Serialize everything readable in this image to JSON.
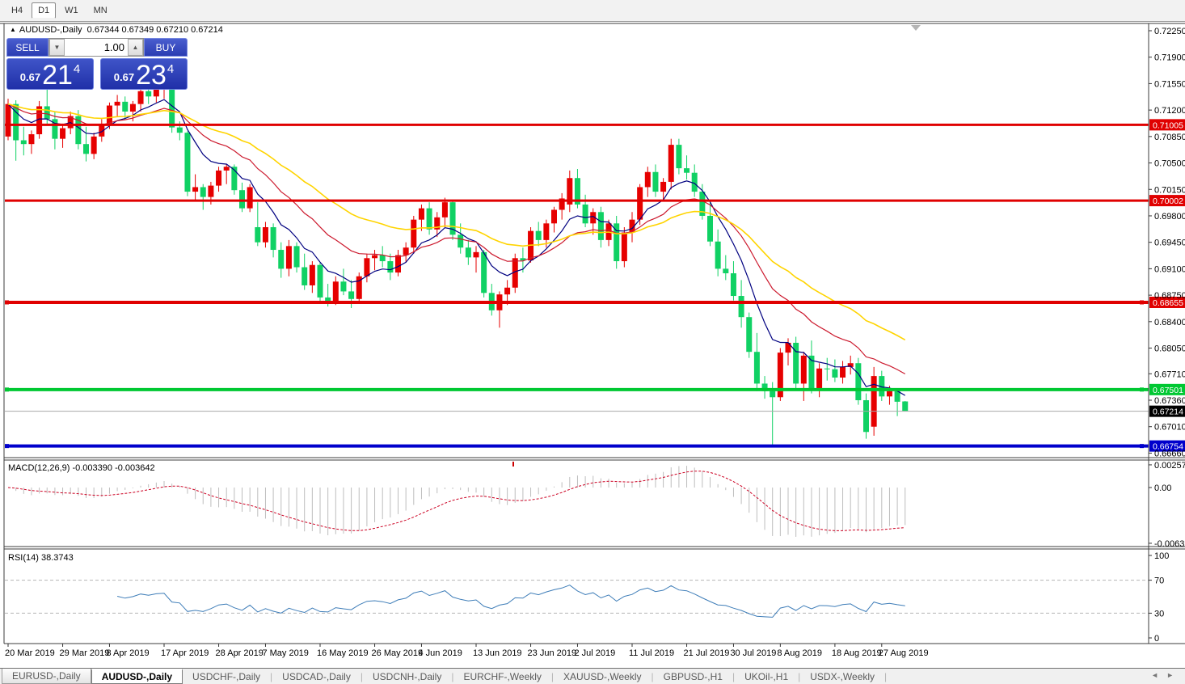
{
  "toolbar": {
    "periods": [
      {
        "label": "H4",
        "active": false
      },
      {
        "label": "D1",
        "active": true
      },
      {
        "label": "W1",
        "active": false
      },
      {
        "label": "MN",
        "active": false
      }
    ]
  },
  "chart_header": {
    "symbol_line": "AUDUSD-,Daily",
    "ohlc_line": "0.67344 0.67349 0.67210 0.67214",
    "collapse_icon": "triangle-up"
  },
  "trade_panel": {
    "sell_label": "SELL",
    "buy_label": "BUY",
    "volume": "1.00",
    "sell_quote": {
      "small": "0.67",
      "big": "21",
      "sup": "4"
    },
    "buy_quote": {
      "small": "0.67",
      "big": "23",
      "sup": "4"
    }
  },
  "macd_label": "MACD(12,26,9) -0.003390 -0.003642",
  "rsi_label": "RSI(14) 38.3743",
  "chart_data": {
    "type": "candlestick",
    "symbol": "AUDUSD-",
    "timeframe": "Daily",
    "colors": {
      "up": "#e60000",
      "down": "#10d164",
      "ma_fast": "#000080",
      "ma_mid": "#cc1a2e",
      "ma_slow": "#ffd400",
      "macd_hist": "#bdbdbd",
      "macd_signal": "#cc0022",
      "rsi": "#3e7db8"
    },
    "y_axis": {
      "ticks": [
        "0.72250",
        "0.71900",
        "0.71550",
        "0.71200",
        "0.70850",
        "0.70500",
        "0.70150",
        "0.69800",
        "0.69450",
        "0.69100",
        "0.68750",
        "0.68400",
        "0.68050",
        "0.67710",
        "0.67360",
        "0.67010",
        "0.66660"
      ],
      "current_price": "0.67214"
    },
    "x_axis": {
      "labels": [
        {
          "bar": 0,
          "label": "20 Mar 2019"
        },
        {
          "bar": 7,
          "label": "29 Mar 2019"
        },
        {
          "bar": 13,
          "label": "8 Apr 2019"
        },
        {
          "bar": 20,
          "label": "17 Apr 2019"
        },
        {
          "bar": 27,
          "label": "28 Apr 2019"
        },
        {
          "bar": 33,
          "label": "7 May 2019"
        },
        {
          "bar": 40,
          "label": "16 May 2019"
        },
        {
          "bar": 47,
          "label": "26 May 2019"
        },
        {
          "bar": 53,
          "label": "4 Jun 2019"
        },
        {
          "bar": 60,
          "label": "13 Jun 2019"
        },
        {
          "bar": 67,
          "label": "23 Jun 2019"
        },
        {
          "bar": 73,
          "label": "2 Jul 2019"
        },
        {
          "bar": 80,
          "label": "11 Jul 2019"
        },
        {
          "bar": 87,
          "label": "21 Jul 2019"
        },
        {
          "bar": 93,
          "label": "30 Jul 2019"
        },
        {
          "bar": 99,
          "label": "8 Aug 2019"
        },
        {
          "bar": 106,
          "label": "18 Aug 2019"
        },
        {
          "bar": 112,
          "label": "27 Aug 2019"
        }
      ]
    },
    "levels": [
      {
        "price": 0.71005,
        "label": "0.71005",
        "color": "#e00000",
        "width": 3,
        "selected": false
      },
      {
        "price": 0.70002,
        "label": "0.70002",
        "color": "#e00000",
        "width": 3,
        "selected": false
      },
      {
        "price": 0.68655,
        "label": "0.68655",
        "color": "#e00000",
        "width": 4,
        "selected": true
      },
      {
        "price": 0.67501,
        "label": "0.67501",
        "color": "#00c832",
        "width": 4,
        "selected": true
      },
      {
        "price": 0.66754,
        "label": "0.66754",
        "color": "#0000cc",
        "width": 4,
        "selected": true
      }
    ],
    "bid": {
      "price": 0.67214,
      "label": "0.67214"
    },
    "moving_averages": [
      {
        "period": 8,
        "method": "ema",
        "color": "#000080",
        "width": 1.2
      },
      {
        "period": 18,
        "method": "ema",
        "color": "#cc1a2e",
        "width": 1.2
      },
      {
        "period": 34,
        "method": "ema",
        "color": "#ffd400",
        "width": 1.6
      }
    ],
    "indicators": [
      {
        "name": "MACD",
        "params": "12,26,9",
        "values": [
          "-0.003390",
          "-0.003642"
        ],
        "scale": [
          "0.002574",
          "0.00",
          "-0.006326"
        ]
      },
      {
        "name": "RSI",
        "params": "14",
        "values": [
          "38.3743"
        ],
        "scale": [
          "100",
          "70",
          "30",
          "0"
        ],
        "level_lines": [
          70,
          30
        ]
      }
    ],
    "candles": [
      [
        0.7085,
        0.7135,
        0.708,
        0.7128
      ],
      [
        0.7128,
        0.7133,
        0.7053,
        0.708
      ],
      [
        0.708,
        0.7098,
        0.706,
        0.7075
      ],
      [
        0.7075,
        0.7093,
        0.7062,
        0.7088
      ],
      [
        0.7088,
        0.7132,
        0.7082,
        0.7125
      ],
      [
        0.7125,
        0.7147,
        0.71,
        0.7108
      ],
      [
        0.7108,
        0.7118,
        0.7068,
        0.7082
      ],
      [
        0.7082,
        0.7102,
        0.707,
        0.7096
      ],
      [
        0.7096,
        0.7118,
        0.7088,
        0.7112
      ],
      [
        0.7112,
        0.712,
        0.7068,
        0.7075
      ],
      [
        0.7075,
        0.7098,
        0.7052,
        0.7062
      ],
      [
        0.7062,
        0.709,
        0.7055,
        0.7085
      ],
      [
        0.7085,
        0.7108,
        0.7078,
        0.7102
      ],
      [
        0.7102,
        0.713,
        0.7095,
        0.7126
      ],
      [
        0.7126,
        0.714,
        0.7112,
        0.7131
      ],
      [
        0.7131,
        0.7138,
        0.7108,
        0.7118
      ],
      [
        0.7118,
        0.7132,
        0.7105,
        0.7128
      ],
      [
        0.7128,
        0.7148,
        0.7118,
        0.7145
      ],
      [
        0.7145,
        0.715,
        0.7128,
        0.7138
      ],
      [
        0.7138,
        0.7152,
        0.713,
        0.7147
      ],
      [
        0.7147,
        0.7155,
        0.7135,
        0.715
      ],
      [
        0.715,
        0.7154,
        0.709,
        0.7097
      ],
      [
        0.7097,
        0.7105,
        0.708,
        0.709
      ],
      [
        0.709,
        0.7092,
        0.7006,
        0.7012
      ],
      [
        0.7012,
        0.7035,
        0.7,
        0.7018
      ],
      [
        0.7018,
        0.7022,
        0.6988,
        0.7005
      ],
      [
        0.7005,
        0.7025,
        0.6995,
        0.702
      ],
      [
        0.702,
        0.7045,
        0.7012,
        0.704
      ],
      [
        0.704,
        0.7048,
        0.7022,
        0.7045
      ],
      [
        0.7045,
        0.7048,
        0.7008,
        0.7014
      ],
      [
        0.7014,
        0.7024,
        0.6985,
        0.699
      ],
      [
        0.699,
        0.7022,
        0.6985,
        0.7018
      ],
      [
        0.6965,
        0.6998,
        0.694,
        0.6945
      ],
      [
        0.6945,
        0.6972,
        0.6938,
        0.6965
      ],
      [
        0.6965,
        0.697,
        0.6925,
        0.6935
      ],
      [
        0.6935,
        0.6945,
        0.6898,
        0.691
      ],
      [
        0.691,
        0.6948,
        0.69,
        0.694
      ],
      [
        0.694,
        0.6945,
        0.6905,
        0.6912
      ],
      [
        0.6912,
        0.693,
        0.6882,
        0.6888
      ],
      [
        0.6888,
        0.692,
        0.6878,
        0.6915
      ],
      [
        0.6915,
        0.6918,
        0.6865,
        0.6872
      ],
      [
        0.6872,
        0.689,
        0.686,
        0.6866
      ],
      [
        0.6866,
        0.69,
        0.6862,
        0.6893
      ],
      [
        0.6893,
        0.691,
        0.6875,
        0.688
      ],
      [
        0.688,
        0.6895,
        0.6858,
        0.687
      ],
      [
        0.687,
        0.6905,
        0.6865,
        0.69
      ],
      [
        0.69,
        0.693,
        0.6892,
        0.6924
      ],
      [
        0.6924,
        0.6935,
        0.6908,
        0.6928
      ],
      [
        0.6928,
        0.694,
        0.6912,
        0.692
      ],
      [
        0.692,
        0.693,
        0.6895,
        0.6905
      ],
      [
        0.6905,
        0.6935,
        0.69,
        0.6928
      ],
      [
        0.6928,
        0.6945,
        0.6918,
        0.6938
      ],
      [
        0.6938,
        0.698,
        0.693,
        0.6975
      ],
      [
        0.6975,
        0.6995,
        0.696,
        0.699
      ],
      [
        0.699,
        0.6998,
        0.6955,
        0.6962
      ],
      [
        0.6962,
        0.6985,
        0.6952,
        0.6978
      ],
      [
        0.6978,
        0.7004,
        0.6965,
        0.6998
      ],
      [
        0.6998,
        0.7,
        0.6948,
        0.6955
      ],
      [
        0.6955,
        0.697,
        0.693,
        0.6938
      ],
      [
        0.6938,
        0.6948,
        0.6915,
        0.6925
      ],
      [
        0.6925,
        0.694,
        0.6905,
        0.6932
      ],
      [
        0.6932,
        0.6935,
        0.6872,
        0.6878
      ],
      [
        0.6878,
        0.689,
        0.6848,
        0.6855
      ],
      [
        0.6855,
        0.688,
        0.6832,
        0.6876
      ],
      [
        0.6876,
        0.6895,
        0.6862,
        0.6885
      ],
      [
        0.6885,
        0.693,
        0.6878,
        0.6924
      ],
      [
        0.6924,
        0.6938,
        0.6905,
        0.6921
      ],
      [
        0.6921,
        0.6965,
        0.6918,
        0.696
      ],
      [
        0.696,
        0.6972,
        0.694,
        0.6948
      ],
      [
        0.6948,
        0.6975,
        0.6938,
        0.697
      ],
      [
        0.697,
        0.6992,
        0.6958,
        0.6988
      ],
      [
        0.6988,
        0.701,
        0.6975,
        0.7003
      ],
      [
        0.6995,
        0.704,
        0.6985,
        0.703
      ],
      [
        0.703,
        0.7042,
        0.699,
        0.6995
      ],
      [
        0.6995,
        0.7008,
        0.6965,
        0.697
      ],
      [
        0.697,
        0.699,
        0.6955,
        0.6985
      ],
      [
        0.6985,
        0.6992,
        0.6938,
        0.6948
      ],
      [
        0.6948,
        0.6975,
        0.694,
        0.697
      ],
      [
        0.697,
        0.698,
        0.691,
        0.692
      ],
      [
        0.692,
        0.6965,
        0.6912,
        0.6958
      ],
      [
        0.6958,
        0.6985,
        0.6945,
        0.6975
      ],
      [
        0.6975,
        0.7022,
        0.6968,
        0.7018
      ],
      [
        0.7018,
        0.7045,
        0.7005,
        0.7038
      ],
      [
        0.7038,
        0.7048,
        0.7005,
        0.7012
      ],
      [
        0.7012,
        0.703,
        0.7,
        0.7025
      ],
      [
        0.7025,
        0.7082,
        0.7015,
        0.7074
      ],
      [
        0.7074,
        0.7082,
        0.7035,
        0.7043
      ],
      [
        0.7043,
        0.706,
        0.7028,
        0.7037
      ],
      [
        0.7037,
        0.7048,
        0.7005,
        0.7012
      ],
      [
        0.7012,
        0.7022,
        0.6975,
        0.698
      ],
      [
        0.698,
        0.6998,
        0.694,
        0.6946
      ],
      [
        0.6946,
        0.6962,
        0.69,
        0.691
      ],
      [
        0.691,
        0.6928,
        0.6895,
        0.6904
      ],
      [
        0.6904,
        0.692,
        0.6868,
        0.6874
      ],
      [
        0.6874,
        0.6895,
        0.6832,
        0.6846
      ],
      [
        0.6846,
        0.6852,
        0.6792,
        0.68
      ],
      [
        0.68,
        0.6825,
        0.6748,
        0.6758
      ],
      [
        0.6758,
        0.6768,
        0.6738,
        0.6748
      ],
      [
        0.6748,
        0.676,
        0.6677,
        0.674
      ],
      [
        0.674,
        0.6805,
        0.6735,
        0.6799
      ],
      [
        0.6799,
        0.6818,
        0.6782,
        0.6812
      ],
      [
        0.6812,
        0.682,
        0.675,
        0.6758
      ],
      [
        0.6758,
        0.68,
        0.6735,
        0.6795
      ],
      [
        0.6795,
        0.6815,
        0.6745,
        0.6752
      ],
      [
        0.6752,
        0.6785,
        0.674,
        0.6778
      ],
      [
        0.6778,
        0.6792,
        0.6762,
        0.6777
      ],
      [
        0.6777,
        0.679,
        0.676,
        0.6766
      ],
      [
        0.6766,
        0.6788,
        0.6758,
        0.678
      ],
      [
        0.678,
        0.6795,
        0.677,
        0.6785
      ],
      [
        0.6785,
        0.6792,
        0.673,
        0.6736
      ],
      [
        0.6736,
        0.6745,
        0.6685,
        0.6694
      ],
      [
        0.6701,
        0.678,
        0.6689,
        0.6768
      ],
      [
        0.6768,
        0.6775,
        0.6735,
        0.6741
      ],
      [
        0.6741,
        0.6755,
        0.673,
        0.6748
      ],
      [
        0.6748,
        0.6752,
        0.6715,
        0.6734
      ],
      [
        0.67344,
        0.67349,
        0.6721,
        0.67214
      ]
    ]
  },
  "bottom_tabs": {
    "tabs": [
      {
        "label": "EURUSD-,Daily",
        "active": false,
        "style": "button"
      },
      {
        "label": "AUDUSD-,Daily",
        "active": true,
        "style": "active"
      },
      {
        "label": "USDCHF-,Daily",
        "active": false,
        "style": "flat"
      },
      {
        "label": "USDCAD-,Daily",
        "active": false,
        "style": "flat"
      },
      {
        "label": "USDCNH-,Daily",
        "active": false,
        "style": "flat"
      },
      {
        "label": "EURCHF-,Weekly",
        "active": false,
        "style": "flat"
      },
      {
        "label": "XAUUSD-,Weekly",
        "active": false,
        "style": "flat"
      },
      {
        "label": "GBPUSD-,H1",
        "active": false,
        "style": "flat"
      },
      {
        "label": "UKOil-,H1",
        "active": false,
        "style": "flat"
      },
      {
        "label": "USDX-,Weekly",
        "active": false,
        "style": "flat"
      }
    ],
    "scroll_left_icon": "◄",
    "scroll_right_icon": "►"
  }
}
